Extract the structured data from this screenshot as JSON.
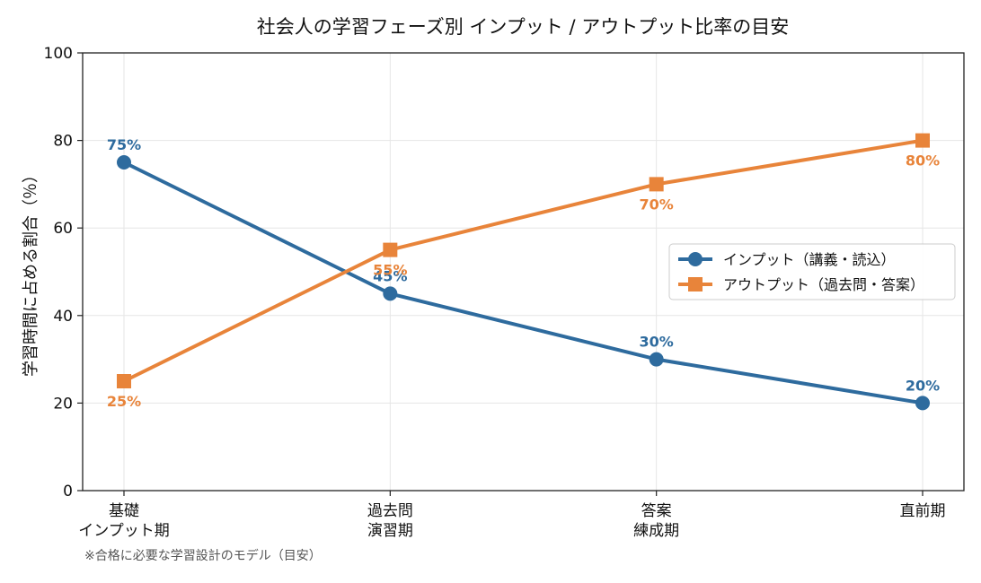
{
  "chart_data": {
    "type": "line",
    "title": "社会人の学習フェーズ別 インプット / アウトプット比率の目安",
    "xlabel": "",
    "ylabel": "学習時間に占める割合（％）",
    "categories": [
      [
        "基礎",
        "インプット期"
      ],
      [
        "過去問",
        "演習期"
      ],
      [
        "答案",
        "練成期"
      ],
      [
        "直前期"
      ]
    ],
    "ylim": [
      0,
      100
    ],
    "yticks": [
      0,
      20,
      40,
      60,
      80,
      100
    ],
    "grid": true,
    "legend_position": "center-right",
    "series": [
      {
        "name": "インプット（講義・読込）",
        "values": [
          75,
          45,
          30,
          20
        ],
        "color": "#2e6b9e",
        "marker": "circle",
        "labels": [
          "75%",
          "45%",
          "30%",
          "20%"
        ],
        "label_position": "above"
      },
      {
        "name": "アウトプット（過去問・答案）",
        "values": [
          25,
          55,
          70,
          80
        ],
        "color": "#e8843a",
        "marker": "square",
        "labels": [
          "25%",
          "55%",
          "70%",
          "80%"
        ],
        "label_position": "below"
      }
    ],
    "footnote": "※合格に必要な学習設計のモデル（目安）"
  }
}
